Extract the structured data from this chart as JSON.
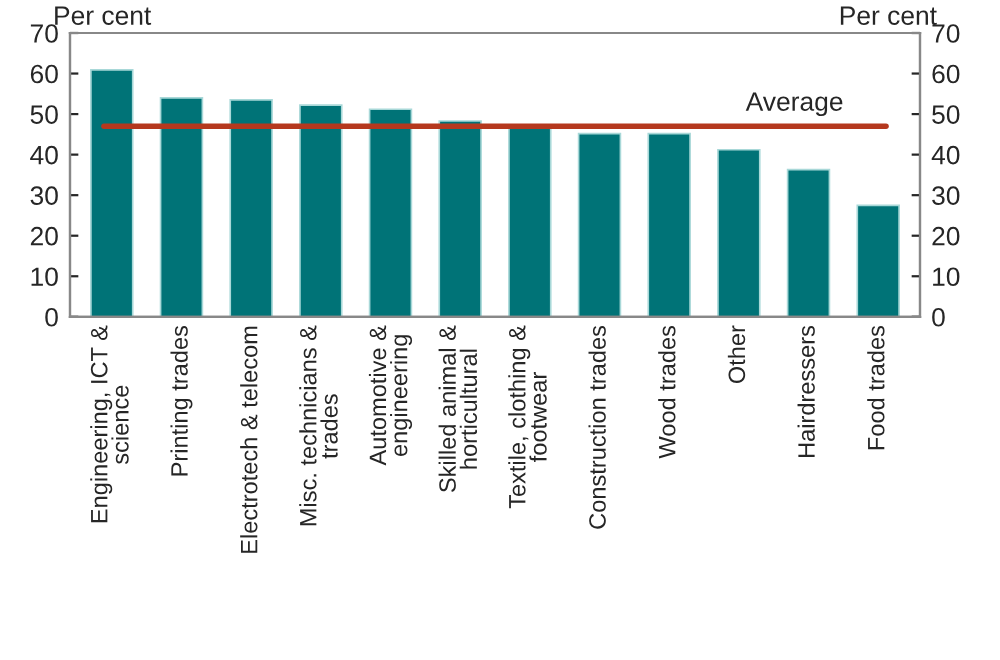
{
  "chart_data": {
    "type": "bar",
    "categories": [
      "Engineering, ICT &\nscience",
      "Printing trades",
      "Electrotech & telecom",
      "Misc. technicians &\ntrades",
      "Automotive &\nengineering",
      "Skilled animal &\nhorticultural",
      "Textile, clothing &\nfootwear",
      "Construction trades",
      "Wood trades",
      "Other",
      "Hairdressers",
      "Food trades"
    ],
    "values": [
      60.9,
      54.0,
      53.5,
      52.2,
      51.2,
      48.3,
      47.1,
      45.2,
      45.2,
      41.2,
      36.3,
      27.5
    ],
    "color": "#007377",
    "ylabel": "Per cent",
    "y2label": "Per cent",
    "ylim": [
      0,
      70
    ],
    "yticks": [
      0,
      10,
      20,
      30,
      40,
      50,
      60,
      70
    ],
    "y2lim": [
      0,
      70
    ],
    "y2ticks": [
      0,
      10,
      20,
      30,
      40,
      50,
      60,
      70
    ],
    "ref_lines": [
      {
        "axis": "y",
        "value": 47,
        "label": "Average",
        "color": "#b5381e"
      }
    ],
    "grid": false,
    "legend": false
  }
}
